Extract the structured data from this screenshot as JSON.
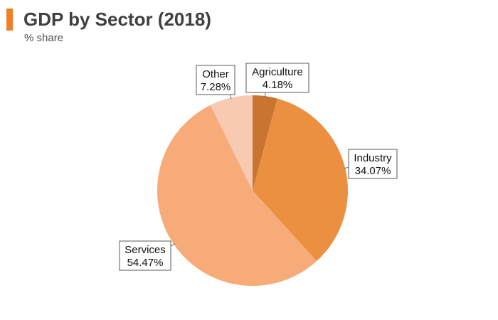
{
  "header": {
    "title": "GDP by Sector (2018)",
    "subtitle": "% share",
    "accent_color": "#f07f28"
  },
  "chart_data": {
    "type": "pie",
    "title": "GDP by Sector (2018)",
    "subtitle": "% share",
    "legend": "none",
    "slices": [
      {
        "name": "Agriculture",
        "value": 4.18,
        "label": "4.18%",
        "color": "#c97430"
      },
      {
        "name": "Industry",
        "value": 34.07,
        "label": "34.07%",
        "color": "#eb8f41"
      },
      {
        "name": "Services",
        "value": 54.47,
        "label": "54.47%",
        "color": "#f7ab78"
      },
      {
        "name": "Other",
        "value": 7.28,
        "label": "7.28%",
        "color": "#f8cab2"
      }
    ]
  }
}
